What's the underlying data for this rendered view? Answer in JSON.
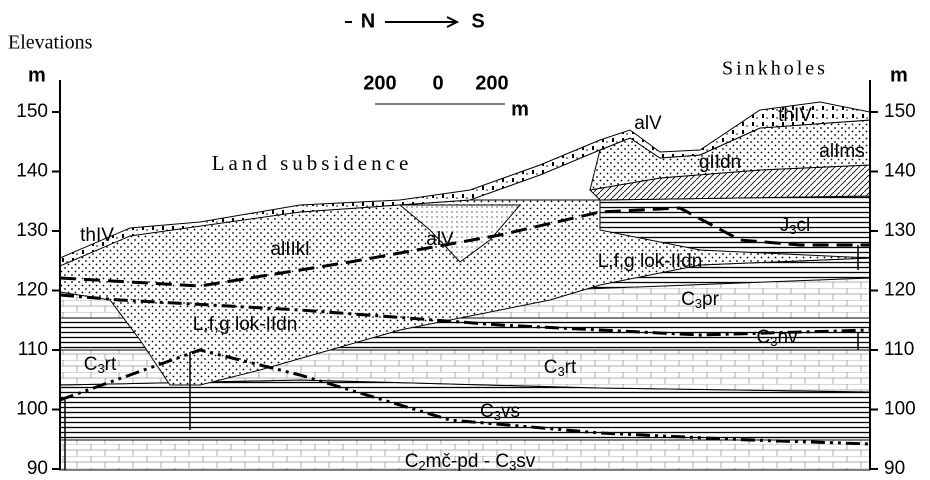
{
  "header": {
    "north": "N",
    "south": "S",
    "axis_title": "Elevations",
    "unit_left": "m",
    "unit_right": "m",
    "sinkholes": "Sinkholes",
    "land_subsidence": "Land subsidence"
  },
  "scale_bar": {
    "labels": [
      "200",
      "0",
      "200"
    ],
    "unit": "m"
  },
  "axis": {
    "ticks": [
      90,
      100,
      110,
      120,
      130,
      140,
      150
    ]
  },
  "units": [
    {
      "parts": [
        "thIV"
      ]
    },
    {
      "parts": [
        "alIIkl"
      ]
    },
    {
      "parts": [
        "alV"
      ]
    },
    {
      "parts": [
        "L,f,g lok-IIdn"
      ]
    },
    {
      "parts": [
        "J",
        "3",
        "cl"
      ]
    },
    {
      "parts": [
        "alV"
      ]
    },
    {
      "parts": [
        "thIV"
      ]
    },
    {
      "parts": [
        "alIms"
      ]
    },
    {
      "parts": [
        "gIIdn"
      ]
    },
    {
      "parts": [
        "C",
        "3",
        "pr"
      ]
    },
    {
      "parts": [
        "C",
        "3",
        "nv"
      ]
    },
    {
      "parts": [
        "L,f,g lok-IIdn"
      ]
    },
    {
      "parts": [
        "C",
        "3",
        "rt"
      ]
    },
    {
      "parts": [
        "C",
        "3",
        "rt"
      ]
    },
    {
      "parts": [
        "C",
        "3",
        "vs"
      ]
    },
    {
      "parts": [
        "C",
        "2",
        "mč-pd - C",
        "3",
        "sv"
      ]
    }
  ]
}
